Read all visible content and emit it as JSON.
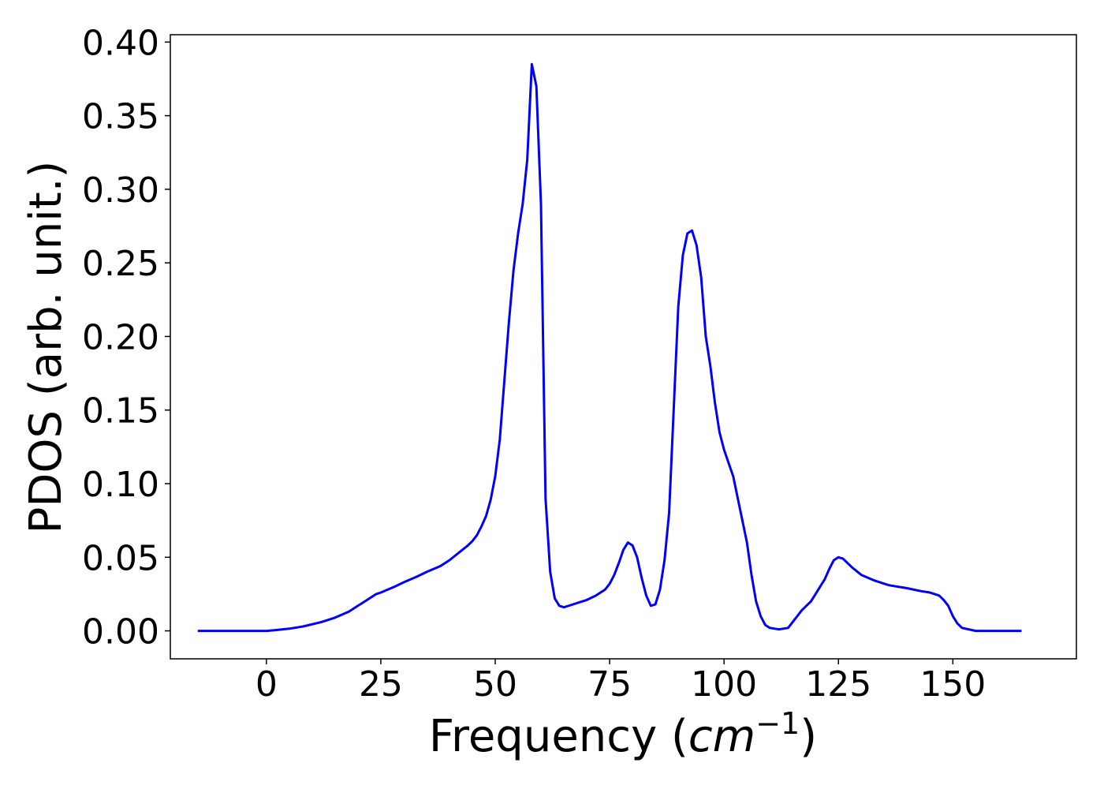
{
  "chart_data": {
    "type": "line",
    "xlabel": "Frequency (cm⁻¹)",
    "xlabel_parts": {
      "prefix": "Frequency (",
      "math": "cm",
      "sup": "−1",
      "suffix": ")"
    },
    "ylabel": "PDOS (arb. unit.)",
    "xlim": [
      -21,
      177
    ],
    "ylim": [
      -0.019,
      0.405
    ],
    "xticks": [
      0,
      25,
      50,
      75,
      100,
      125,
      150
    ],
    "xtick_labels": [
      "0",
      "25",
      "50",
      "75",
      "100",
      "125",
      "150"
    ],
    "yticks": [
      0.0,
      0.05,
      0.1,
      0.15,
      0.2,
      0.25,
      0.3,
      0.35,
      0.4
    ],
    "ytick_labels": [
      "0.00",
      "0.05",
      "0.10",
      "0.15",
      "0.20",
      "0.25",
      "0.30",
      "0.35",
      "0.40"
    ],
    "grid": false,
    "series": [
      {
        "color": "#0000ff",
        "x": [
          -15,
          -5,
          0,
          2,
          5,
          8,
          12,
          15,
          18,
          20,
          22,
          24,
          25,
          28,
          30,
          33,
          35,
          38,
          40,
          42,
          44,
          45,
          46,
          47,
          48,
          49,
          50,
          51,
          52,
          53,
          54,
          55,
          56,
          57,
          58,
          59,
          60,
          61,
          62,
          63,
          64,
          65,
          67,
          70,
          72,
          74,
          75,
          76,
          77,
          78,
          79,
          80,
          81,
          82,
          83,
          84,
          85,
          86,
          87,
          88,
          89,
          90,
          91,
          92,
          93,
          94,
          95,
          96,
          97,
          98,
          99,
          100,
          102,
          103,
          104,
          105,
          106,
          107,
          108,
          109,
          110,
          112,
          114,
          115,
          117,
          119,
          120,
          121,
          122,
          123,
          124,
          125,
          126,
          127,
          128,
          130,
          133,
          136,
          140,
          143,
          145,
          146,
          147,
          148,
          149,
          150,
          151,
          152,
          155,
          160,
          165
        ],
        "y": [
          0.0,
          0.0,
          0.0,
          0.0005,
          0.0015,
          0.003,
          0.006,
          0.009,
          0.013,
          0.017,
          0.021,
          0.025,
          0.026,
          0.03,
          0.033,
          0.037,
          0.04,
          0.044,
          0.048,
          0.053,
          0.058,
          0.061,
          0.065,
          0.071,
          0.078,
          0.089,
          0.105,
          0.13,
          0.17,
          0.21,
          0.245,
          0.27,
          0.29,
          0.32,
          0.385,
          0.37,
          0.29,
          0.09,
          0.04,
          0.022,
          0.017,
          0.016,
          0.018,
          0.021,
          0.024,
          0.028,
          0.032,
          0.038,
          0.046,
          0.055,
          0.06,
          0.058,
          0.05,
          0.036,
          0.024,
          0.017,
          0.018,
          0.028,
          0.048,
          0.08,
          0.15,
          0.22,
          0.255,
          0.27,
          0.272,
          0.262,
          0.24,
          0.2,
          0.18,
          0.155,
          0.135,
          0.123,
          0.105,
          0.09,
          0.075,
          0.06,
          0.038,
          0.02,
          0.01,
          0.004,
          0.002,
          0.001,
          0.002,
          0.006,
          0.014,
          0.02,
          0.025,
          0.03,
          0.035,
          0.042,
          0.048,
          0.05,
          0.049,
          0.046,
          0.043,
          0.038,
          0.034,
          0.031,
          0.029,
          0.027,
          0.026,
          0.025,
          0.024,
          0.021,
          0.017,
          0.01,
          0.005,
          0.002,
          0.0,
          0.0,
          0.0
        ]
      }
    ]
  }
}
